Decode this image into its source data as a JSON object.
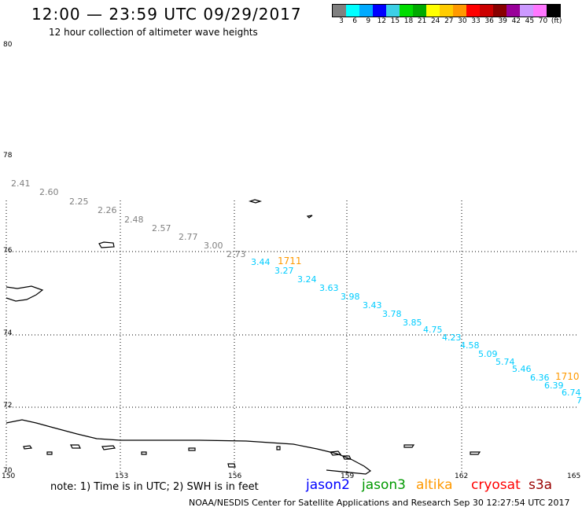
{
  "header": {
    "title": "12:00 — 23:59 UTC 09/29/2017",
    "subtitle": "12 hour collection of altimeter wave heights"
  },
  "colorbar": {
    "swatches": [
      "#808080",
      "#00ffff",
      "#00aaff",
      "#0000ff",
      "#3ccfe6",
      "#00dd00",
      "#00aa00",
      "#ffff00",
      "#ffcc00",
      "#ff9900",
      "#ff0000",
      "#cc0000",
      "#880000",
      "#990099",
      "#cc99ff",
      "#ff77ff",
      "#000000"
    ],
    "labels": [
      "3",
      "6",
      "9",
      "12",
      "15",
      "18",
      "21",
      "24",
      "27",
      "30",
      "33",
      "36",
      "39",
      "42",
      "45",
      "70",
      "(ft)"
    ]
  },
  "axes": {
    "lat_labels": [
      "80",
      "78",
      "76",
      "74",
      "72",
      "70"
    ],
    "lon_labels": [
      "150",
      "153",
      "156",
      "159",
      "162",
      "165"
    ]
  },
  "passes": {
    "gray": [
      "2.41",
      "2.60",
      "2.25",
      "2.26",
      "2.48",
      "2.57",
      "2.77",
      "3.00",
      "2.73"
    ],
    "cyan": [
      "3.44",
      "3.27",
      "3.24",
      "3.63",
      "3.98",
      "3.43",
      "3.78",
      "3.85",
      "4.75",
      "4.23",
      "4.58",
      "5.09",
      "5.74",
      "5.46",
      "6.36",
      "6.39",
      "6.74",
      "7"
    ],
    "stamps": [
      "1711",
      "1710"
    ]
  },
  "colors": {
    "gray_pass": "#808080",
    "cyan_pass": "#00ccff",
    "stamp": "#ff9900",
    "jason2": "#0000ff",
    "jason3": "#009900",
    "altika": "#ff9900",
    "cryosat": "#ff0000",
    "s3a": "#990000"
  },
  "footer": {
    "note": "note: 1) Time is in UTC; 2) SWH is in feet",
    "satellites": [
      "jason2",
      "jason3",
      "altika",
      "cryosat",
      "s3a"
    ],
    "credit": "NOAA/NESDIS Center for Satellite Applications and Research   Sep 30 12:27:54 UTC 2017"
  }
}
